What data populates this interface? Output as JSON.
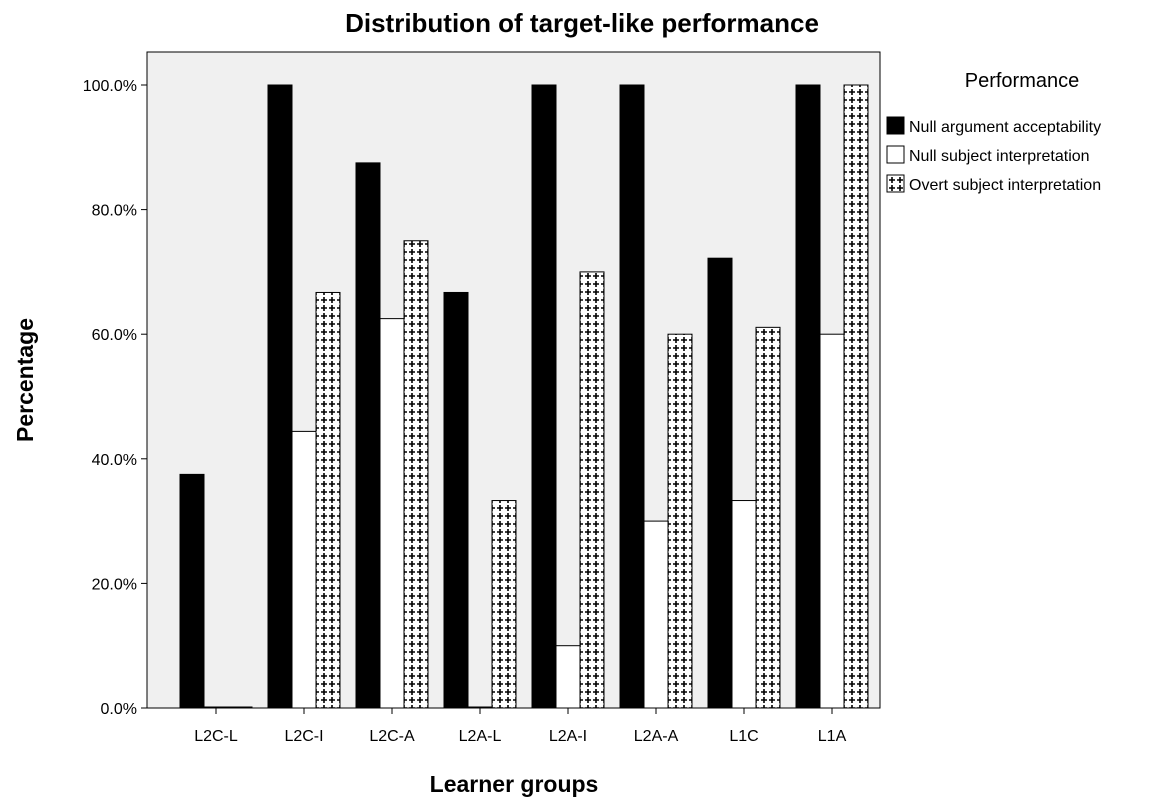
{
  "chart_data": {
    "type": "bar",
    "title": "Distribution of target-like performance",
    "xlabel": "Learner groups",
    "ylabel": "Percentage",
    "ylim": [
      0,
      100
    ],
    "yticks": [
      "0.0%",
      "20.0%",
      "40.0%",
      "60.0%",
      "80.0%",
      "100.0%"
    ],
    "categories": [
      "L2C-L",
      "L2C-I",
      "L2C-A",
      "L2A-L",
      "L2A-I",
      "L2A-A",
      "L1C",
      "L1A"
    ],
    "legend_title": "Performance",
    "legend_position": "right",
    "series": [
      {
        "name": "Null argument acceptability",
        "pattern": "solid-black",
        "values": [
          37.5,
          100,
          87.5,
          66.7,
          100,
          100,
          72.2,
          100
        ]
      },
      {
        "name": "Null subject interpretation",
        "pattern": "white",
        "values": [
          0,
          44.4,
          62.5,
          0,
          10,
          30,
          33.3,
          60
        ]
      },
      {
        "name": "Overt subject interpretation",
        "pattern": "crosshatch",
        "values": [
          0,
          66.7,
          75,
          33.3,
          70,
          60,
          61.1,
          100
        ]
      }
    ],
    "colors": {
      "plot_background": "#f0f0f0",
      "bar_dark": "#000000",
      "bar_light": "#ffffff"
    }
  }
}
